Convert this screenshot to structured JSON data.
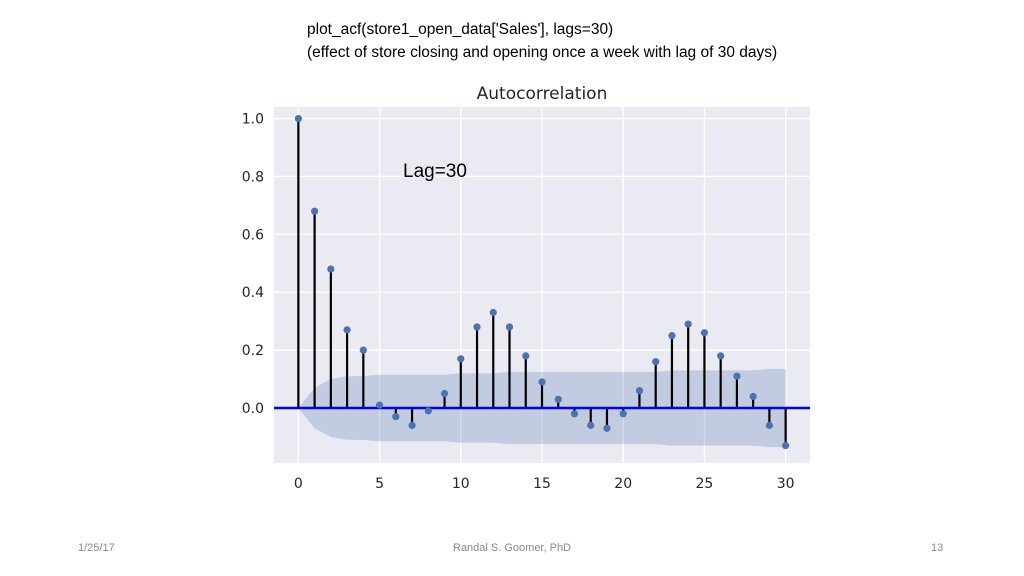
{
  "slide": {
    "caption_line1": "plot_acf(store1_open_data['Sales'], lags=30)",
    "caption_line2": "(effect of store closing and opening once a week with lag of 30 days)",
    "footer_date": "1/25/17",
    "footer_author": "Randal S. Goomer, PhD",
    "footer_page": "13"
  },
  "chart_data": {
    "type": "stem",
    "title": "Autocorrelation",
    "annotation": "Lag=30",
    "xlabel": "",
    "ylabel": "",
    "xlim": [
      -1.5,
      31.5
    ],
    "ylim": [
      -0.19,
      1.04
    ],
    "xticks": [
      0,
      5,
      10,
      15,
      20,
      25,
      30
    ],
    "yticks": [
      0.0,
      0.2,
      0.4,
      0.6,
      0.8,
      1.0
    ],
    "ytick_labels": [
      "0.0",
      "0.2",
      "0.4",
      "0.6",
      "0.8",
      "1.0"
    ],
    "grid": true,
    "x": [
      0,
      1,
      2,
      3,
      4,
      5,
      6,
      7,
      8,
      9,
      10,
      11,
      12,
      13,
      14,
      15,
      16,
      17,
      18,
      19,
      20,
      21,
      22,
      23,
      24,
      25,
      26,
      27,
      28,
      29,
      30
    ],
    "values": [
      1.0,
      0.68,
      0.48,
      0.27,
      0.2,
      0.01,
      -0.03,
      -0.06,
      -0.01,
      0.05,
      0.17,
      0.28,
      0.33,
      0.28,
      0.18,
      0.09,
      0.03,
      -0.02,
      -0.06,
      -0.07,
      -0.02,
      0.06,
      0.16,
      0.25,
      0.29,
      0.26,
      0.18,
      0.11,
      0.04,
      -0.06,
      -0.13
    ],
    "confidence_band": [
      0.0,
      0.07,
      0.1,
      0.11,
      0.11,
      0.115,
      0.115,
      0.115,
      0.115,
      0.115,
      0.12,
      0.12,
      0.12,
      0.125,
      0.125,
      0.125,
      0.125,
      0.125,
      0.125,
      0.125,
      0.125,
      0.125,
      0.125,
      0.13,
      0.13,
      0.13,
      0.13,
      0.13,
      0.13,
      0.135,
      0.135
    ],
    "colors": {
      "background": "#eaeaf2",
      "grid": "#ffffff",
      "stem": "#000000",
      "marker": "#4c72b0",
      "zero_line": "#0000ff",
      "band": "#4c72b0"
    }
  }
}
